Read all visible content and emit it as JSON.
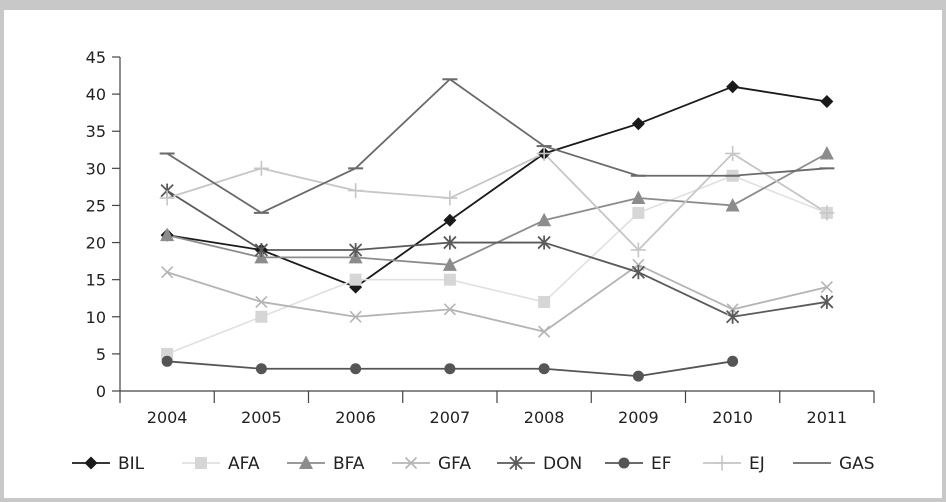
{
  "chart_data": {
    "type": "line",
    "x": [
      "2004",
      "2005",
      "2006",
      "2007",
      "2008",
      "2009",
      "2010",
      "2011"
    ],
    "ylim": [
      0,
      45
    ],
    "yticks": [
      "0",
      "5",
      "10",
      "15",
      "20",
      "25",
      "30",
      "35",
      "40",
      "45"
    ],
    "grid": false,
    "legend": "bottom",
    "series": [
      {
        "name": "BIL",
        "marker": "diamond",
        "color": "#1a1a1a",
        "lineColor": "#1a1a1a",
        "values": [
          21,
          19,
          14,
          23,
          32,
          36,
          41,
          39
        ]
      },
      {
        "name": "AFA",
        "marker": "square",
        "color": "#d6d6d6",
        "lineColor": "#e0e0e0",
        "values": [
          5,
          10,
          15,
          15,
          12,
          24,
          29,
          24
        ]
      },
      {
        "name": "BFA",
        "marker": "triangle",
        "color": "#8c8c8c",
        "lineColor": "#8c8c8c",
        "values": [
          21,
          18,
          18,
          17,
          23,
          26,
          25,
          32
        ]
      },
      {
        "name": "GFA",
        "marker": "x",
        "color": "#b4b4b4",
        "lineColor": "#b4b4b4",
        "values": [
          16,
          12,
          10,
          11,
          8,
          17,
          11,
          14
        ]
      },
      {
        "name": "DON",
        "marker": "asterisk",
        "color": "#5a5a5a",
        "lineColor": "#5a5a5a",
        "values": [
          27,
          19,
          19,
          20,
          20,
          16,
          10,
          12
        ]
      },
      {
        "name": "EF",
        "marker": "circle",
        "color": "#555555",
        "lineColor": "#555555",
        "values": [
          4,
          3,
          3,
          3,
          3,
          2,
          4,
          null
        ]
      },
      {
        "name": "EJ",
        "marker": "plus",
        "color": "#c6c6c6",
        "lineColor": "#c6c6c6",
        "values": [
          26,
          30,
          27,
          26,
          32,
          19,
          32,
          24
        ]
      },
      {
        "name": "GAS",
        "marker": "dash",
        "color": "#6a6a6a",
        "lineColor": "#6a6a6a",
        "values": [
          32,
          24,
          30,
          42,
          33,
          29,
          29,
          30
        ]
      }
    ]
  }
}
